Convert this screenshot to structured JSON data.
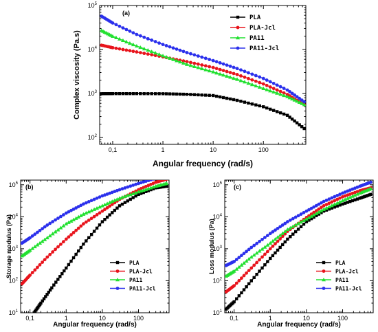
{
  "colors": {
    "PLA": "#000000",
    "PLA-Jcl": "#e8141c",
    "PA11": "#22e030",
    "PA11-Jcl": "#2b30ec"
  },
  "chart_data": [
    {
      "id": "a",
      "type": "line",
      "panel_label": "(a)",
      "xlabel": "Angular frequency (rad/s)",
      "ylabel": "Complex viscosity (Pa.s)",
      "xscale": "log",
      "yscale": "log",
      "xlim": [
        0.055,
        700
      ],
      "ylim": [
        70,
        100000
      ],
      "xticks": [
        {
          "v": 0.1,
          "label": "0,1"
        },
        {
          "v": 1,
          "label": "1"
        },
        {
          "v": 10,
          "label": "10"
        },
        {
          "v": 100,
          "label": "100"
        }
      ],
      "yticks": [
        {
          "v": 100,
          "base": "10",
          "exp": "2"
        },
        {
          "v": 1000,
          "base": "10",
          "exp": "3"
        },
        {
          "v": 10000,
          "base": "10",
          "exp": "4"
        },
        {
          "v": 100000,
          "base": "10",
          "exp": "5"
        }
      ],
      "legend_position": "top-right",
      "series": [
        {
          "name": "PLA",
          "marker": "square",
          "x": [
            0.06,
            0.1,
            0.3,
            1,
            3,
            10,
            30,
            100,
            300,
            650
          ],
          "y": [
            990,
            995,
            995,
            990,
            960,
            900,
            700,
            500,
            320,
            160
          ]
        },
        {
          "name": "PLA-Jcl",
          "marker": "circle",
          "x": [
            0.06,
            0.1,
            0.3,
            1,
            3,
            10,
            30,
            100,
            300,
            650
          ],
          "y": [
            12500,
            11000,
            8800,
            6800,
            5300,
            3900,
            2700,
            1650,
            950,
            560
          ]
        },
        {
          "name": "PA11",
          "marker": "triangle",
          "x": [
            0.06,
            0.1,
            0.3,
            1,
            3,
            10,
            30,
            100,
            300,
            650
          ],
          "y": [
            27000,
            20000,
            12000,
            7200,
            4600,
            3100,
            2100,
            1300,
            850,
            560
          ]
        },
        {
          "name": "PA11-Jcl",
          "marker": "circle",
          "x": [
            0.06,
            0.1,
            0.3,
            1,
            3,
            10,
            30,
            100,
            300,
            650
          ],
          "y": [
            57000,
            40000,
            22000,
            13000,
            8500,
            5600,
            3700,
            2200,
            1200,
            650
          ]
        }
      ]
    },
    {
      "id": "b",
      "type": "line",
      "panel_label": "(b)",
      "xlabel": "Angular frequency (rad/s)",
      "ylabel": "Storage modulus (Pa)",
      "xscale": "log",
      "yscale": "log",
      "xlim": [
        0.055,
        700
      ],
      "ylim": [
        10,
        140000
      ],
      "xticks": [
        {
          "v": 0.1,
          "label": "0,1"
        },
        {
          "v": 1,
          "label": "1"
        },
        {
          "v": 10,
          "label": "10"
        },
        {
          "v": 100,
          "label": "100"
        }
      ],
      "yticks": [
        {
          "v": 10,
          "base": "10",
          "exp": "1"
        },
        {
          "v": 100,
          "base": "10",
          "exp": "2"
        },
        {
          "v": 1000,
          "base": "10",
          "exp": "3"
        },
        {
          "v": 10000,
          "base": "10",
          "exp": "4"
        },
        {
          "v": 100000,
          "base": "10",
          "exp": "5"
        }
      ],
      "legend_position": "bottom-right",
      "series": [
        {
          "name": "PLA",
          "marker": "square",
          "x": [
            0.13,
            0.2,
            0.4,
            1,
            3,
            10,
            30,
            100,
            300,
            600
          ],
          "y": [
            10,
            20,
            60,
            250,
            1400,
            7000,
            22000,
            50000,
            80000,
            90000
          ]
        },
        {
          "name": "PLA-Jcl",
          "marker": "circle",
          "x": [
            0.06,
            0.1,
            0.3,
            1,
            3,
            10,
            30,
            100,
            300,
            600
          ],
          "y": [
            80,
            150,
            550,
            2000,
            6000,
            15000,
            35000,
            70000,
            120000,
            150000
          ]
        },
        {
          "name": "PA11",
          "marker": "triangle",
          "x": [
            0.06,
            0.1,
            0.3,
            1,
            3,
            10,
            30,
            100,
            300,
            600
          ],
          "y": [
            600,
            900,
            2200,
            6000,
            12000,
            22000,
            38000,
            60000,
            90000,
            110000
          ]
        },
        {
          "name": "PA11-Jcl",
          "marker": "circle",
          "x": [
            0.06,
            0.1,
            0.3,
            1,
            3,
            10,
            30,
            100,
            300,
            600
          ],
          "y": [
            1500,
            2200,
            5500,
            13000,
            25000,
            45000,
            70000,
            110000,
            160000,
            200000
          ]
        }
      ]
    },
    {
      "id": "c",
      "type": "line",
      "panel_label": "(c)",
      "xlabel": "Angular frequency (rad/s)",
      "ylabel": "Loss modulus (Pa)",
      "xscale": "log",
      "yscale": "log",
      "xlim": [
        0.055,
        700
      ],
      "ylim": [
        10,
        140000
      ],
      "xticks": [
        {
          "v": 0.1,
          "label": "0,1"
        },
        {
          "v": 1,
          "label": "1"
        },
        {
          "v": 10,
          "label": "10"
        },
        {
          "v": 100,
          "label": "100"
        }
      ],
      "yticks": [
        {
          "v": 10,
          "base": "10",
          "exp": "1"
        },
        {
          "v": 100,
          "base": "10",
          "exp": "2"
        },
        {
          "v": 1000,
          "base": "10",
          "exp": "3"
        },
        {
          "v": 10000,
          "base": "10",
          "exp": "4"
        },
        {
          "v": 100000,
          "base": "10",
          "exp": "5"
        }
      ],
      "legend_position": "bottom-right",
      "series": [
        {
          "name": "PLA",
          "marker": "square",
          "x": [
            0.06,
            0.1,
            0.3,
            1,
            3,
            10,
            30,
            100,
            300,
            600
          ],
          "y": [
            13,
            22,
            100,
            500,
            2000,
            7000,
            15000,
            25000,
            38000,
            50000
          ]
        },
        {
          "name": "PLA-Jcl",
          "marker": "circle",
          "x": [
            0.06,
            0.1,
            0.3,
            1,
            3,
            10,
            30,
            100,
            300,
            600
          ],
          "y": [
            45,
            70,
            250,
            1000,
            3500,
            9500,
            22000,
            42000,
            65000,
            80000
          ]
        },
        {
          "name": "PA11",
          "marker": "triangle",
          "x": [
            0.06,
            0.1,
            0.3,
            1,
            3,
            10,
            30,
            100,
            300,
            600
          ],
          "y": [
            140,
            200,
            550,
            1500,
            4000,
            8500,
            17000,
            32000,
            55000,
            75000
          ]
        },
        {
          "name": "PA11-Jcl",
          "marker": "circle",
          "x": [
            0.06,
            0.1,
            0.3,
            1,
            3,
            10,
            30,
            100,
            300,
            600
          ],
          "y": [
            300,
            400,
            1100,
            3000,
            7000,
            15000,
            30000,
            55000,
            90000,
            120000
          ]
        }
      ]
    }
  ]
}
